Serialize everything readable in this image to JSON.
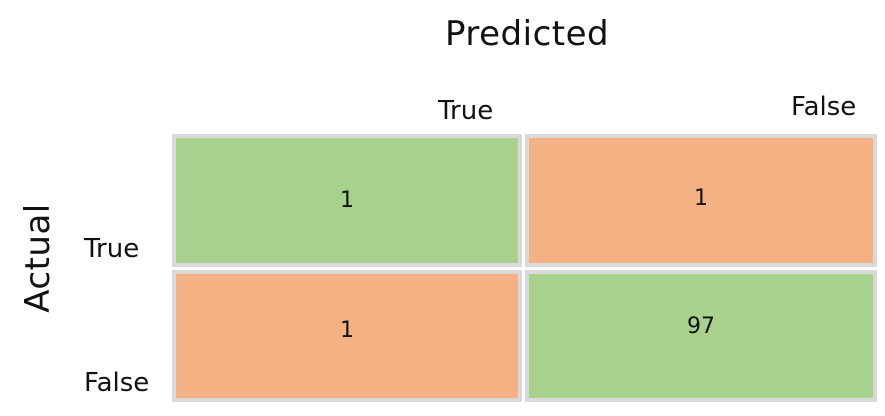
{
  "titles": {
    "predicted": "Predicted",
    "actual": "Actual"
  },
  "columns": [
    "True",
    "False"
  ],
  "rows": [
    "True",
    "False"
  ],
  "cells": {
    "actual_true_predicted_true": "1",
    "actual_true_predicted_false": "1",
    "actual_false_predicted_true": "1",
    "actual_false_predicted_false": "97"
  },
  "colors": {
    "correct": "#a9d18e",
    "incorrect": "#f4b183",
    "grid_border": "#d9d9d9"
  }
}
